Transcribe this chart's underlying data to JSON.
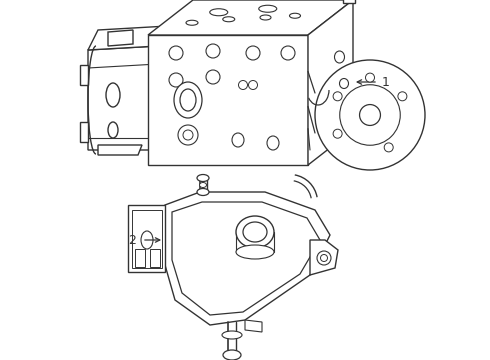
{
  "background_color": "#ffffff",
  "line_color": "#333333",
  "line_width": 1.0,
  "label1": "1",
  "label2": "2"
}
